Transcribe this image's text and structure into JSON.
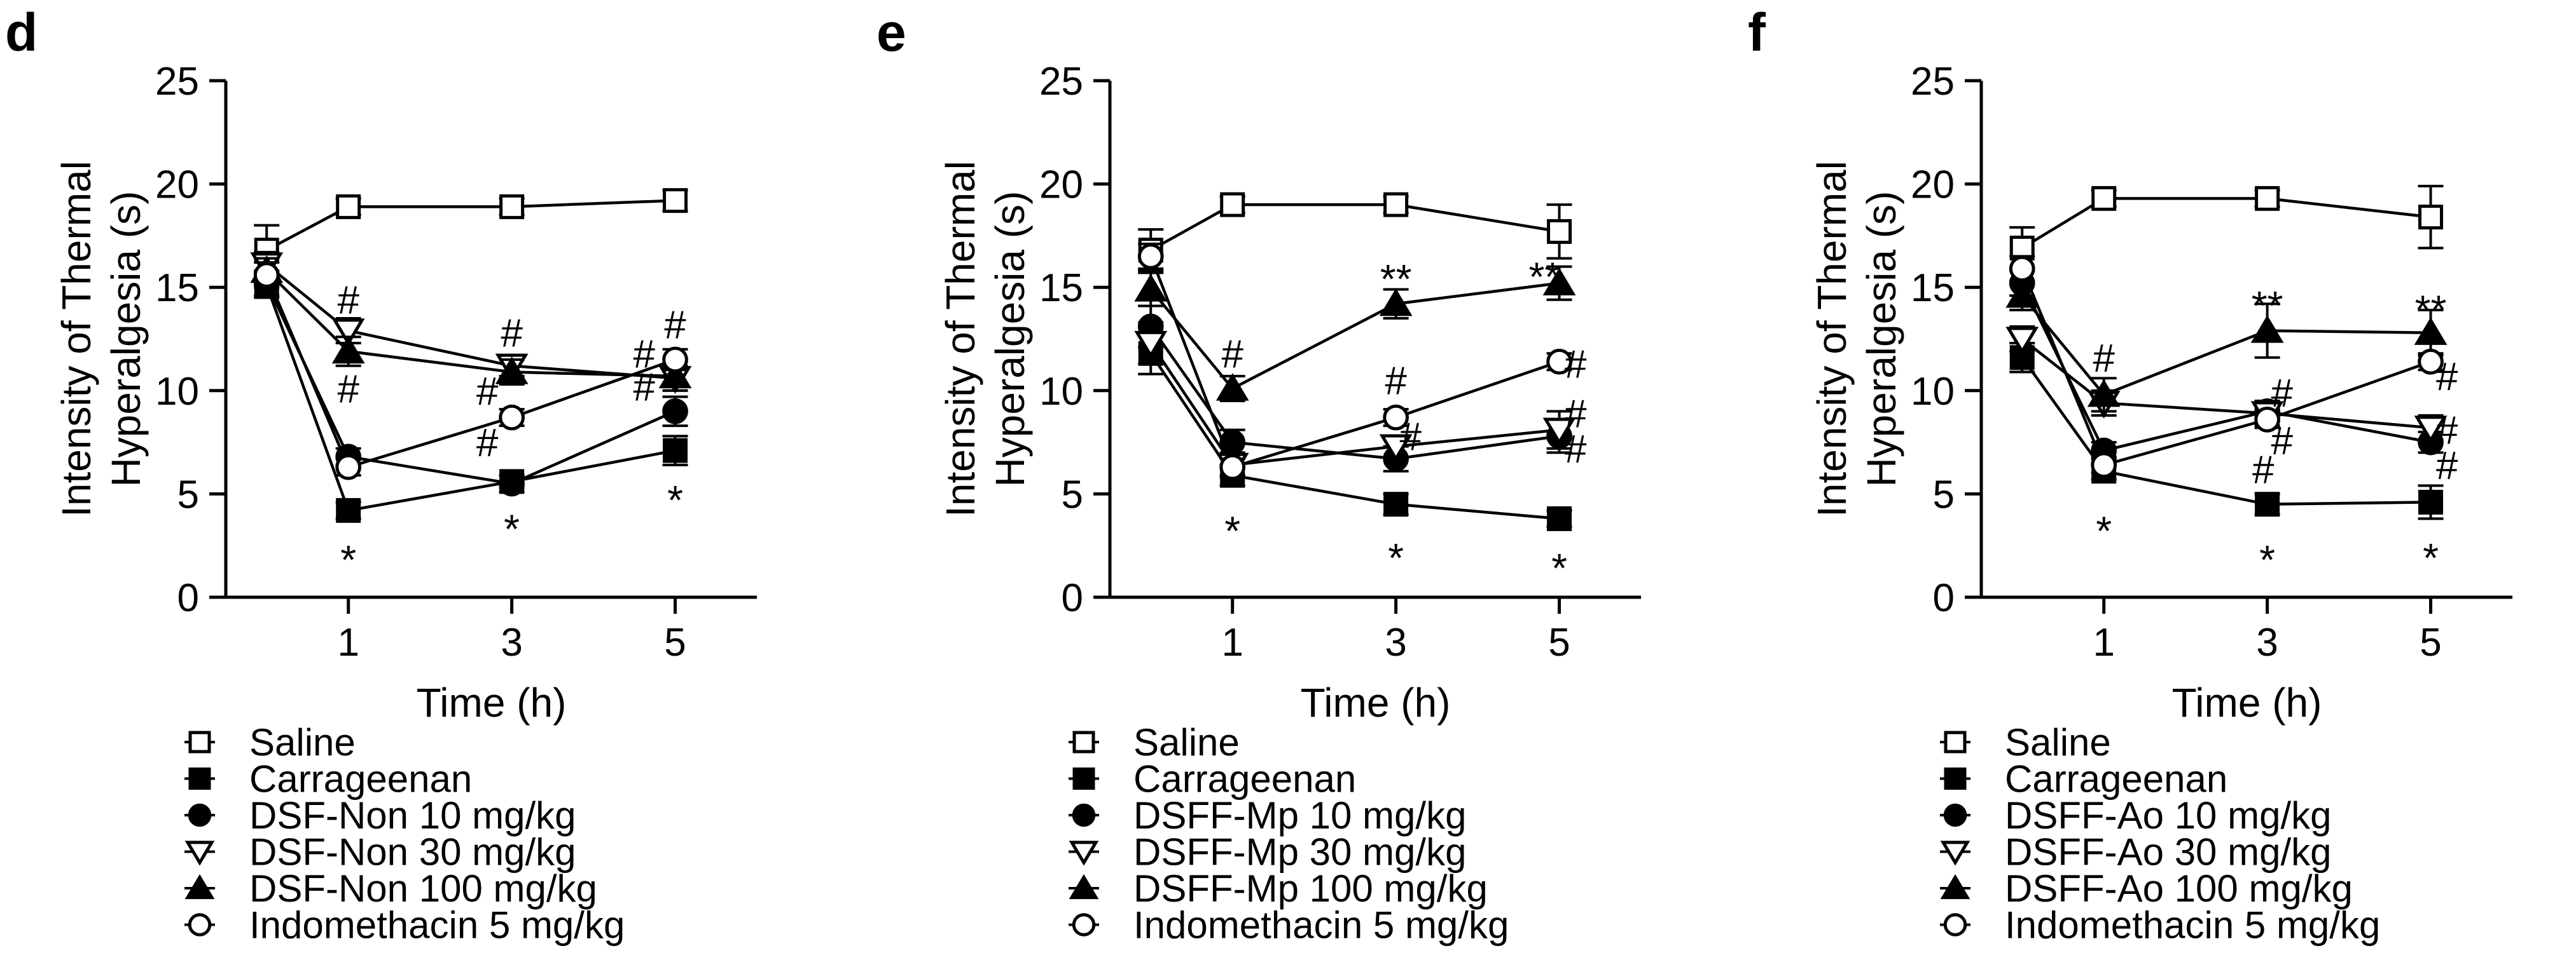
{
  "chart_data": [
    {
      "type": "line",
      "panel_label": "d",
      "xlabel": "Time (h)",
      "ylabel_lines": [
        "Intensity of Thermal",
        "Hyperalgesia (s)"
      ],
      "ylim": [
        0,
        25
      ],
      "yticks": [
        "0",
        "5",
        "10",
        "15",
        "20",
        "25"
      ],
      "xlim": [
        -0.5,
        6
      ],
      "xticks": [
        "1",
        "3",
        "5"
      ],
      "x": [
        0,
        1,
        3,
        5
      ],
      "series": [
        {
          "name": "Saline",
          "marker": "square-open",
          "values": [
            16.8,
            18.9,
            18.9,
            19.2
          ],
          "err": [
            1.2,
            0.4,
            0.4,
            0.5
          ]
        },
        {
          "name": "Carrageenan",
          "marker": "square-filled",
          "values": [
            15.1,
            4.2,
            5.6,
            7.1
          ],
          "err": [
            0.6,
            0.4,
            0.3,
            0.7
          ]
        },
        {
          "name": "DSF-Non 10 mg/kg",
          "marker": "circle-filled",
          "values": [
            15.2,
            6.8,
            5.5,
            9.0
          ],
          "err": [
            0.6,
            0.4,
            0.4,
            0.7
          ]
        },
        {
          "name": "DSF-Non 30 mg/kg",
          "marker": "triangle-down-open",
          "values": [
            16.1,
            12.9,
            11.2,
            10.6
          ],
          "err": [
            0.6,
            0.6,
            0.5,
            0.6
          ]
        },
        {
          "name": "DSF-Non 100 mg/kg",
          "marker": "triangle-up-filled",
          "values": [
            15.8,
            11.9,
            10.9,
            10.7
          ],
          "err": [
            0.6,
            0.7,
            0.6,
            0.7
          ]
        },
        {
          "name": "Indomethacin 5 mg/kg",
          "marker": "circle-open",
          "values": [
            15.6,
            6.3,
            8.7,
            11.5
          ],
          "err": [
            0.6,
            0.4,
            0.4,
            0.5
          ]
        }
      ],
      "annotations": [
        {
          "text": "#",
          "x": 1,
          "y": 14.4
        },
        {
          "text": "#",
          "x": 1,
          "y": 10.1
        },
        {
          "text": "*",
          "x": 1,
          "y": 2.3
        },
        {
          "text": "#",
          "x": 3,
          "y": 12.8
        },
        {
          "text": "#",
          "x": 2.7,
          "y": 10.0
        },
        {
          "text": "#",
          "x": 2.7,
          "y": 7.5
        },
        {
          "text": "*",
          "x": 3,
          "y": 3.8
        },
        {
          "text": "#",
          "x": 5,
          "y": 13.2
        },
        {
          "text": "#",
          "x": 4.62,
          "y": 11.8
        },
        {
          "text": "#",
          "x": 4.62,
          "y": 10.2
        },
        {
          "text": "*",
          "x": 5,
          "y": 5.2
        }
      ]
    },
    {
      "type": "line",
      "panel_label": "e",
      "xlabel": "Time (h)",
      "ylabel_lines": [
        "Intensity of Thermal",
        "Hyperalgesia (s)"
      ],
      "ylim": [
        0,
        25
      ],
      "yticks": [
        "0",
        "5",
        "10",
        "15",
        "20",
        "25"
      ],
      "xlim": [
        -0.5,
        6
      ],
      "xticks": [
        "1",
        "3",
        "5"
      ],
      "x": [
        0,
        1,
        3,
        5
      ],
      "series": [
        {
          "name": "Saline",
          "marker": "square-open",
          "values": [
            16.8,
            19.0,
            19.0,
            17.7
          ],
          "err": [
            1.0,
            0.4,
            0.4,
            1.3
          ]
        },
        {
          "name": "Carrageenan",
          "marker": "square-filled",
          "values": [
            11.8,
            5.9,
            4.5,
            3.8
          ],
          "err": [
            1.0,
            0.5,
            0.5,
            0.4
          ]
        },
        {
          "name": "DSFF-Mp 10 mg/kg",
          "marker": "circle-filled",
          "values": [
            13.1,
            7.5,
            6.7,
            7.8
          ],
          "err": [
            1.0,
            0.6,
            0.6,
            0.8
          ]
        },
        {
          "name": "DSFF-Mp 30 mg/kg",
          "marker": "triangle-down-open",
          "values": [
            12.3,
            6.4,
            7.3,
            8.1
          ],
          "err": [
            1.0,
            0.6,
            0.5,
            0.9
          ]
        },
        {
          "name": "DSFF-Mp 100 mg/kg",
          "marker": "triangle-up-filled",
          "values": [
            14.9,
            10.1,
            14.2,
            15.2
          ],
          "err": [
            0.8,
            0.6,
            0.7,
            0.8
          ]
        },
        {
          "name": "Indomethacin 5 mg/kg",
          "marker": "circle-open",
          "values": [
            16.5,
            6.3,
            8.7,
            11.4
          ],
          "err": [
            0.6,
            0.4,
            0.4,
            0.4
          ]
        }
      ],
      "annotations": [
        {
          "text": "#",
          "x": 1,
          "y": 11.8
        },
        {
          "text": "*",
          "x": 1,
          "y": 3.7
        },
        {
          "text": "**",
          "x": 3,
          "y": 15.9
        },
        {
          "text": "#",
          "x": 3,
          "y": 10.5
        },
        {
          "text": "#",
          "x": 3.18,
          "y": 7.8
        },
        {
          "text": "*",
          "x": 3,
          "y": 2.4
        },
        {
          "text": "**",
          "x": 4.82,
          "y": 16.0
        },
        {
          "text": "#",
          "x": 5.2,
          "y": 11.3
        },
        {
          "text": "#",
          "x": 5.2,
          "y": 8.9
        },
        {
          "text": "#",
          "x": 5.2,
          "y": 7.2
        },
        {
          "text": "*",
          "x": 5,
          "y": 1.9
        }
      ]
    },
    {
      "type": "line",
      "panel_label": "f",
      "xlabel": "Time (h)",
      "ylabel_lines": [
        "Intensity of Thermal",
        "Hyperalgesia (s)"
      ],
      "ylim": [
        0,
        25
      ],
      "yticks": [
        "0",
        "5",
        "10",
        "15",
        "20",
        "25"
      ],
      "xlim": [
        -0.5,
        6
      ],
      "xticks": [
        "1",
        "3",
        "5"
      ],
      "x": [
        0,
        1,
        3,
        5
      ],
      "series": [
        {
          "name": "Saline",
          "marker": "square-open",
          "values": [
            16.9,
            19.3,
            19.3,
            18.4
          ],
          "err": [
            1.0,
            0.4,
            0.4,
            1.5
          ]
        },
        {
          "name": "Carrageenan",
          "marker": "square-filled",
          "values": [
            11.6,
            6.1,
            4.5,
            4.6
          ],
          "err": [
            0.7,
            0.4,
            0.5,
            0.8
          ]
        },
        {
          "name": "DSFF-Ao 10 mg/kg",
          "marker": "circle-filled",
          "values": [
            15.2,
            7.1,
            9.0,
            7.5
          ],
          "err": [
            0.6,
            0.4,
            0.5,
            0.5
          ]
        },
        {
          "name": "DSFF-Ao 30 mg/kg",
          "marker": "triangle-down-open",
          "values": [
            12.5,
            9.4,
            8.9,
            8.2
          ],
          "err": [
            0.6,
            0.6,
            0.6,
            0.6
          ]
        },
        {
          "name": "DSFF-Ao 100 mg/kg",
          "marker": "triangle-up-filled",
          "values": [
            14.6,
            9.8,
            12.9,
            12.8
          ],
          "err": [
            0.7,
            0.8,
            1.3,
            1.1
          ]
        },
        {
          "name": "Indomethacin 5 mg/kg",
          "marker": "circle-open",
          "values": [
            15.9,
            6.4,
            8.6,
            11.4
          ],
          "err": [
            0.6,
            0.4,
            0.4,
            0.4
          ]
        }
      ],
      "annotations": [
        {
          "text": "#",
          "x": 1,
          "y": 11.6
        },
        {
          "text": "*",
          "x": 1,
          "y": 3.7
        },
        {
          "text": "**",
          "x": 3,
          "y": 14.6
        },
        {
          "text": "#",
          "x": 3.18,
          "y": 9.9
        },
        {
          "text": "#",
          "x": 3.18,
          "y": 7.6
        },
        {
          "text": "#",
          "x": 2.95,
          "y": 6.2
        },
        {
          "text": "*",
          "x": 3,
          "y": 2.3
        },
        {
          "text": "**",
          "x": 5,
          "y": 14.4
        },
        {
          "text": "#",
          "x": 5.2,
          "y": 10.7
        },
        {
          "text": "#",
          "x": 5.2,
          "y": 8.1
        },
        {
          "text": "#",
          "x": 5.2,
          "y": 6.4
        },
        {
          "text": "*",
          "x": 5,
          "y": 2.4
        }
      ]
    }
  ]
}
